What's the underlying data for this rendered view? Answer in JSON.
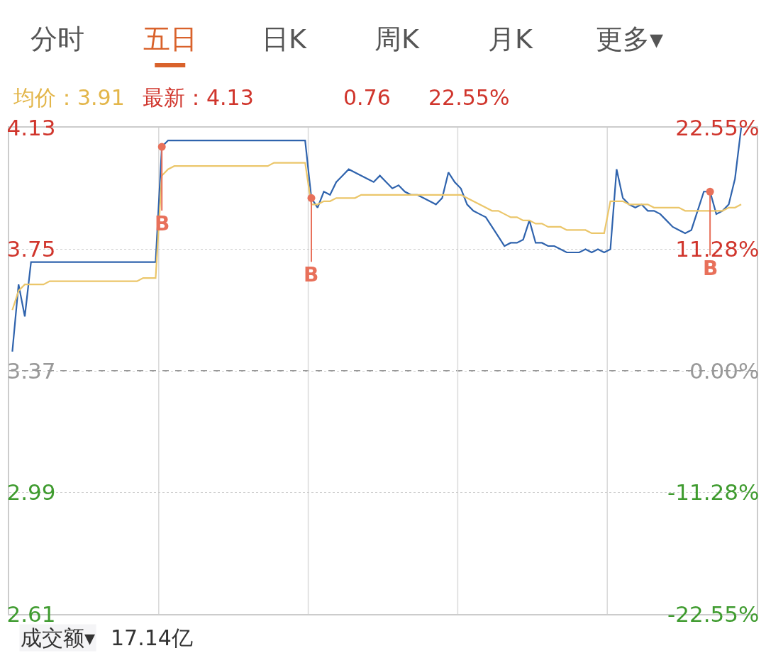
{
  "chart_data": {
    "type": "line",
    "categories": [
      null,
      null,
      null,
      null,
      null,
      null,
      null,
      null,
      null,
      null,
      null,
      null,
      null,
      null,
      null,
      null,
      null,
      null,
      null,
      null,
      null,
      null,
      null,
      null,
      null,
      null,
      null,
      null,
      null,
      null,
      null,
      null,
      null,
      null,
      null,
      null,
      null,
      null,
      null,
      null,
      null,
      null,
      null,
      null,
      null,
      null,
      null,
      null,
      null,
      null,
      null,
      null,
      null,
      null,
      null,
      null,
      null,
      null,
      null,
      null,
      null,
      null,
      null,
      null,
      null,
      null,
      null,
      null,
      null,
      null,
      null,
      null,
      null,
      null,
      null,
      null,
      null,
      null,
      null,
      null,
      null,
      null,
      null,
      null,
      null,
      null,
      null,
      null,
      null,
      null,
      null,
      null,
      null,
      null,
      null,
      null,
      null,
      null,
      null,
      null,
      null,
      null,
      null,
      null,
      null,
      null,
      null,
      null,
      null,
      null,
      null,
      null,
      null,
      null,
      null,
      null,
      null,
      null,
      null,
      null
    ],
    "series": [
      {
        "color": "#2f63ad",
        "values": [
          3.43,
          3.64,
          3.54,
          3.71,
          3.71,
          3.71,
          3.71,
          3.71,
          3.71,
          3.71,
          3.71,
          3.71,
          3.71,
          3.71,
          3.71,
          3.71,
          3.71,
          3.71,
          3.71,
          3.71,
          3.71,
          3.71,
          3.71,
          3.71,
          4.07,
          4.09,
          4.09,
          4.09,
          4.09,
          4.09,
          4.09,
          4.09,
          4.09,
          4.09,
          4.09,
          4.09,
          4.09,
          4.09,
          4.09,
          4.09,
          4.09,
          4.09,
          4.09,
          4.09,
          4.09,
          4.09,
          4.09,
          4.09,
          3.91,
          3.88,
          3.93,
          3.92,
          3.96,
          3.98,
          4.0,
          3.99,
          3.98,
          3.97,
          3.96,
          3.98,
          3.96,
          3.94,
          3.95,
          3.93,
          3.92,
          3.92,
          3.91,
          3.9,
          3.89,
          3.91,
          3.99,
          3.96,
          3.94,
          3.89,
          3.87,
          3.86,
          3.85,
          3.82,
          3.79,
          3.76,
          3.77,
          3.77,
          3.78,
          3.84,
          3.77,
          3.77,
          3.76,
          3.76,
          3.75,
          3.74,
          3.74,
          3.74,
          3.75,
          3.74,
          3.75,
          3.74,
          3.75,
          4.0,
          3.91,
          3.89,
          3.88,
          3.89,
          3.87,
          3.87,
          3.86,
          3.84,
          3.82,
          3.81,
          3.8,
          3.81,
          3.87,
          3.93,
          3.93,
          3.86,
          3.87,
          3.89,
          3.97,
          4.13,
          null,
          null
        ]
      },
      {
        "color": "#ebc66a",
        "values": [
          3.56,
          3.62,
          3.64,
          3.64,
          3.64,
          3.64,
          3.65,
          3.65,
          3.65,
          3.65,
          3.65,
          3.65,
          3.65,
          3.65,
          3.65,
          3.65,
          3.65,
          3.65,
          3.65,
          3.65,
          3.65,
          3.66,
          3.66,
          3.66,
          3.98,
          4.0,
          4.01,
          4.01,
          4.01,
          4.01,
          4.01,
          4.01,
          4.01,
          4.01,
          4.01,
          4.01,
          4.01,
          4.01,
          4.01,
          4.01,
          4.01,
          4.01,
          4.02,
          4.02,
          4.02,
          4.02,
          4.02,
          4.02,
          3.89,
          3.89,
          3.9,
          3.9,
          3.91,
          3.91,
          3.91,
          3.91,
          3.92,
          3.92,
          3.92,
          3.92,
          3.92,
          3.92,
          3.92,
          3.92,
          3.92,
          3.92,
          3.92,
          3.92,
          3.92,
          3.92,
          3.92,
          3.92,
          3.92,
          3.91,
          3.9,
          3.89,
          3.88,
          3.87,
          3.87,
          3.86,
          3.85,
          3.85,
          3.84,
          3.84,
          3.83,
          3.83,
          3.82,
          3.82,
          3.82,
          3.81,
          3.81,
          3.81,
          3.81,
          3.8,
          3.8,
          3.8,
          3.9,
          3.9,
          3.9,
          3.89,
          3.89,
          3.89,
          3.89,
          3.88,
          3.88,
          3.88,
          3.88,
          3.88,
          3.87,
          3.87,
          3.87,
          3.87,
          3.87,
          3.87,
          3.87,
          3.88,
          3.88,
          3.89,
          null,
          null
        ]
      },
      {
        "type": "scatter",
        "marker": "circle",
        "color": "#e8705a",
        "values": [
          null,
          null,
          null,
          null,
          null,
          null,
          null,
          null,
          null,
          null,
          null,
          null,
          null,
          null,
          null,
          null,
          null,
          null,
          null,
          null,
          null,
          null,
          null,
          null,
          4.07,
          null,
          null,
          null,
          null,
          null,
          null,
          null,
          null,
          null,
          null,
          null,
          null,
          null,
          null,
          null,
          null,
          null,
          null,
          null,
          null,
          null,
          null,
          null,
          3.91,
          null,
          null,
          null,
          null,
          null,
          null,
          null,
          null,
          null,
          null,
          null,
          null,
          null,
          null,
          null,
          null,
          null,
          null,
          null,
          null,
          null,
          null,
          null,
          null,
          null,
          null,
          null,
          null,
          null,
          null,
          null,
          null,
          null,
          null,
          null,
          null,
          null,
          null,
          null,
          null,
          null,
          null,
          null,
          null,
          null,
          null,
          null,
          null,
          null,
          null,
          null,
          null,
          null,
          null,
          null,
          null,
          null,
          null,
          null,
          null,
          null,
          null,
          null,
          3.93,
          null,
          null,
          null,
          null,
          null,
          null,
          null
        ]
      }
    ],
    "ylim": [
      2.61,
      4.13
    ],
    "yticks": [
      2.61,
      2.99,
      3.37,
      3.75,
      4.13
    ],
    "y2lim": [
      -22.55,
      22.55
    ],
    "y2ticks": [
      {
        "value": -22.55,
        "label": "-22.55%"
      },
      {
        "value": -11.28,
        "label": "-11.28%"
      },
      {
        "value": 0,
        "label": "0.00%"
      },
      {
        "value": 11.28,
        "label": "11.28%"
      },
      {
        "value": 22.55,
        "label": "22.55%"
      }
    ],
    "tick_labels": "y",
    "ref_lines": [
      {
        "axis": "y",
        "value": 3.37,
        "color": "#999999",
        "line_style": "dashed"
      }
    ],
    "grid": true,
    "legend": false,
    "line_style": "solid",
    "annotations": [
      "分时",
      "五日",
      "日K",
      "周K",
      "月K",
      "更多▾",
      "均价：3.91",
      "最新：4.13",
      "0.76",
      "22.55%",
      "B",
      "B",
      "B",
      "成交额▾",
      "17.14亿"
    ]
  }
}
